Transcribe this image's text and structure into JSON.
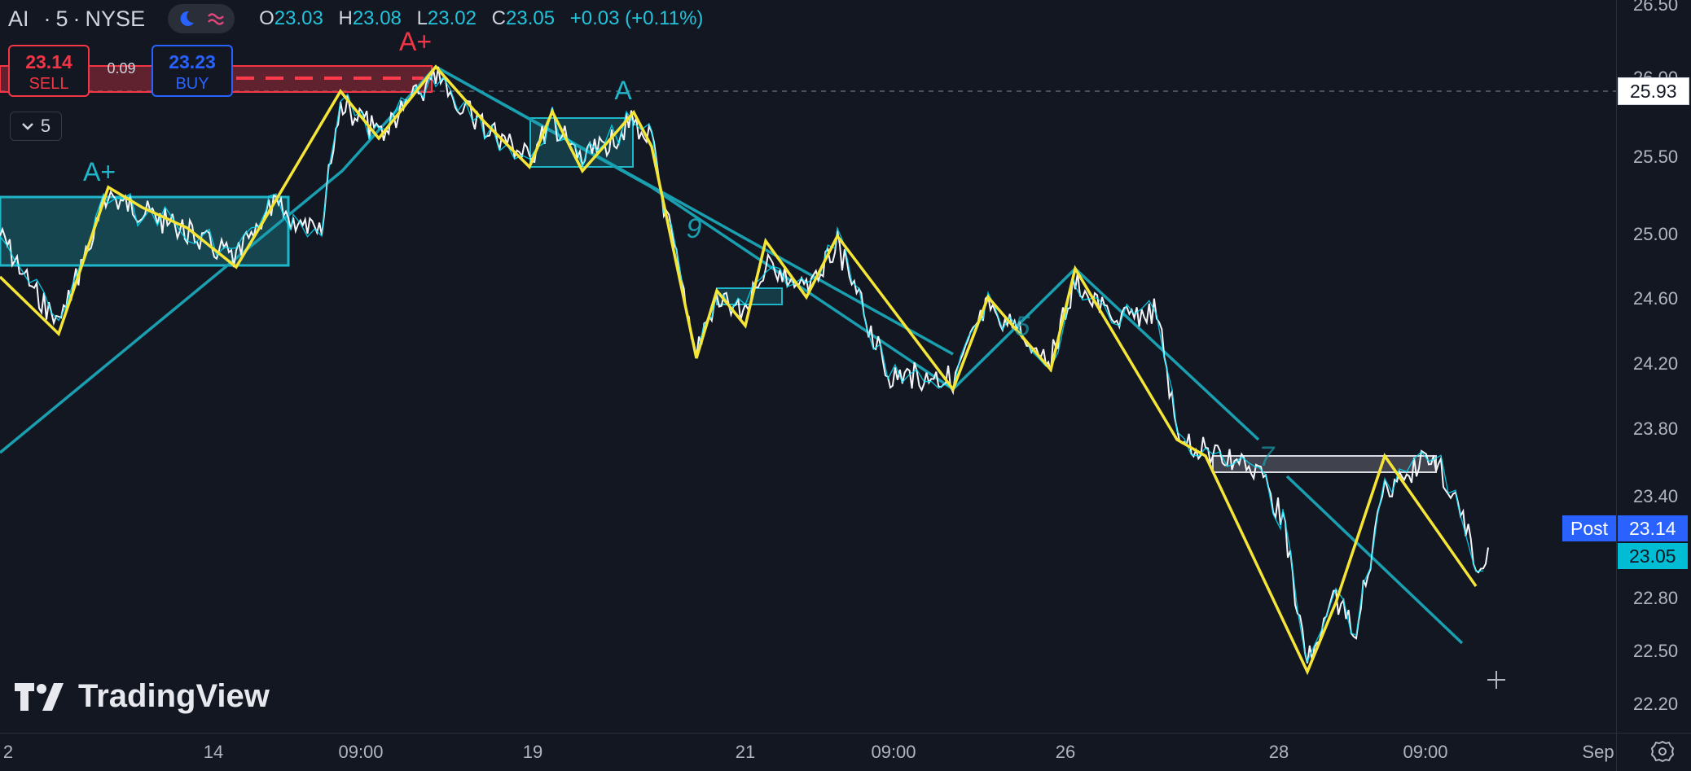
{
  "legend": {
    "symbol": "AI",
    "interval": "5",
    "exchange": "NYSE",
    "ohlc": [
      {
        "key": "O",
        "value": "23.03"
      },
      {
        "key": "H",
        "value": "23.08"
      },
      {
        "key": "L",
        "value": "23.02"
      },
      {
        "key": "C",
        "value": "23.05"
      }
    ],
    "change": "+0.03 (+0.11%)"
  },
  "trade": {
    "sell_price": "23.14",
    "sell_label": "SELL",
    "spread": "0.09",
    "buy_price": "23.23",
    "buy_label": "BUY"
  },
  "interval_button": {
    "value": "5"
  },
  "branding": {
    "logo_text": "TradingView"
  },
  "price_axis": {
    "ticks": [
      "26.50",
      "26.00",
      "25.50",
      "25.00",
      "24.60",
      "24.20",
      "23.80",
      "23.40",
      "22.80",
      "22.50",
      "22.20"
    ],
    "tags": {
      "line_price": "25.93",
      "post_label": "Post",
      "post_price": "23.14",
      "last_price": "23.05"
    }
  },
  "time_axis": {
    "ticks": [
      "2",
      "14",
      "09:00",
      "19",
      "21",
      "09:00",
      "26",
      "28",
      "09:00",
      "Sep"
    ]
  },
  "annotations": {
    "grades": [
      "A+",
      "A+",
      "A"
    ],
    "wave_numbers": [
      "9",
      "5",
      "7"
    ]
  },
  "colors": {
    "background": "#131722",
    "zigzag": "#f5e536",
    "trend": "#1a9fb0",
    "price": "#ffffff",
    "price_accent": "#00e5ff",
    "zone": "#1a5c66",
    "sell": "#f23645",
    "buy": "#2962ff"
  },
  "icons": {
    "theme_toggle": "moon-icon",
    "wave_toggle": "wave-icon",
    "settings": "gear-icon",
    "interval_chevron": "chevron-down-icon",
    "crosshair": "crosshair-icon"
  }
}
